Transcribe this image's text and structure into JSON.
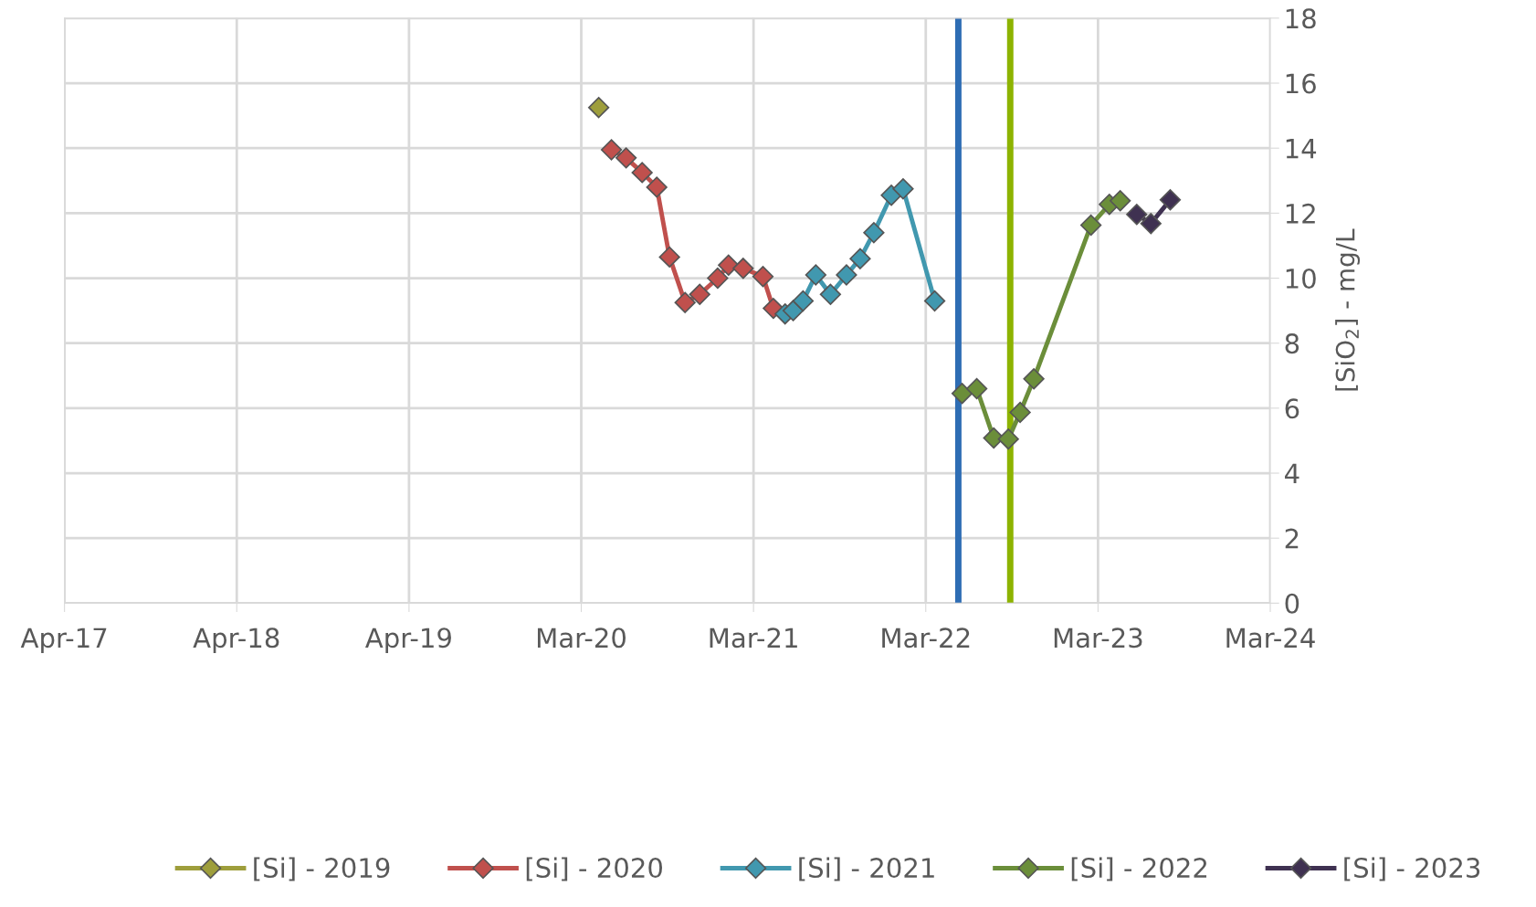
{
  "chart_data": {
    "type": "line",
    "ylabel": "[SiO$_{2}$] - mg/L",
    "xlim": [
      "2017-04-01",
      "2024-03-30"
    ],
    "xticks": [
      {
        "value": "2017-04-01",
        "label": "Apr-17"
      },
      {
        "value": "2018-04-01",
        "label": "Apr-18"
      },
      {
        "value": "2019-04-01",
        "label": "Apr-19"
      },
      {
        "value": "2020-03-31",
        "label": "Mar-20"
      },
      {
        "value": "2021-03-31",
        "label": "Mar-21"
      },
      {
        "value": "2022-03-31",
        "label": "Mar-22"
      },
      {
        "value": "2023-03-31",
        "label": "Mar-23"
      },
      {
        "value": "2024-03-30",
        "label": "Mar-24"
      }
    ],
    "ylim": [
      0,
      18
    ],
    "yticks": [
      0,
      2,
      4,
      6,
      8,
      10,
      12,
      14,
      16,
      18
    ],
    "grid": true,
    "legend": "bottom",
    "marker": "diamond",
    "line_style": "solid",
    "series": [
      {
        "name": "[Si] - 2019",
        "color": "#9e9e3c",
        "x": [
          "2020-05-07"
        ],
        "values": [
          15.25
        ]
      },
      {
        "name": "[Si] - 2020",
        "color": "#c0504d",
        "x": [
          "2020-06-03",
          "2020-07-04",
          "2020-08-07",
          "2020-09-07",
          "2020-10-04",
          "2020-11-06",
          "2020-12-07",
          "2021-01-14",
          "2021-02-06",
          "2021-03-09",
          "2021-04-20",
          "2021-05-12"
        ],
        "values": [
          13.95,
          13.7,
          13.25,
          12.8,
          10.65,
          9.25,
          9.5,
          10.0,
          10.4,
          10.3,
          10.05,
          9.07
        ]
      },
      {
        "name": "[Si] - 2021",
        "color": "#4198af",
        "x": [
          "2021-06-06",
          "2021-06-23",
          "2021-07-14",
          "2021-08-10",
          "2021-09-10",
          "2021-10-14",
          "2021-11-12",
          "2021-12-11",
          "2022-01-17",
          "2022-02-11",
          "2022-04-19"
        ],
        "values": [
          8.9,
          9.0,
          9.3,
          10.1,
          9.5,
          10.1,
          10.6,
          11.4,
          12.55,
          12.75,
          9.3
        ]
      },
      {
        "name": "[Si] - 2022",
        "color": "#6b8e3a",
        "x": [
          "2022-06-16",
          "2022-07-17",
          "2022-08-22",
          "2022-09-22",
          "2022-10-17",
          "2022-11-15",
          "2023-03-16",
          "2023-04-24",
          "2023-05-17"
        ],
        "values": [
          6.45,
          6.6,
          5.08,
          5.05,
          5.87,
          6.9,
          11.63,
          12.27,
          12.38
        ]
      },
      {
        "name": "[Si] - 2023",
        "color": "#3f3151",
        "x": [
          "2023-06-21",
          "2023-07-21",
          "2023-08-31"
        ],
        "values": [
          11.96,
          11.68,
          12.41
        ]
      }
    ],
    "ref_lines": [
      {
        "axis": "x",
        "value": "2022-06-08",
        "color": "#2e6db4"
      },
      {
        "axis": "x",
        "value": "2022-09-26",
        "color": "#8db300"
      }
    ]
  }
}
